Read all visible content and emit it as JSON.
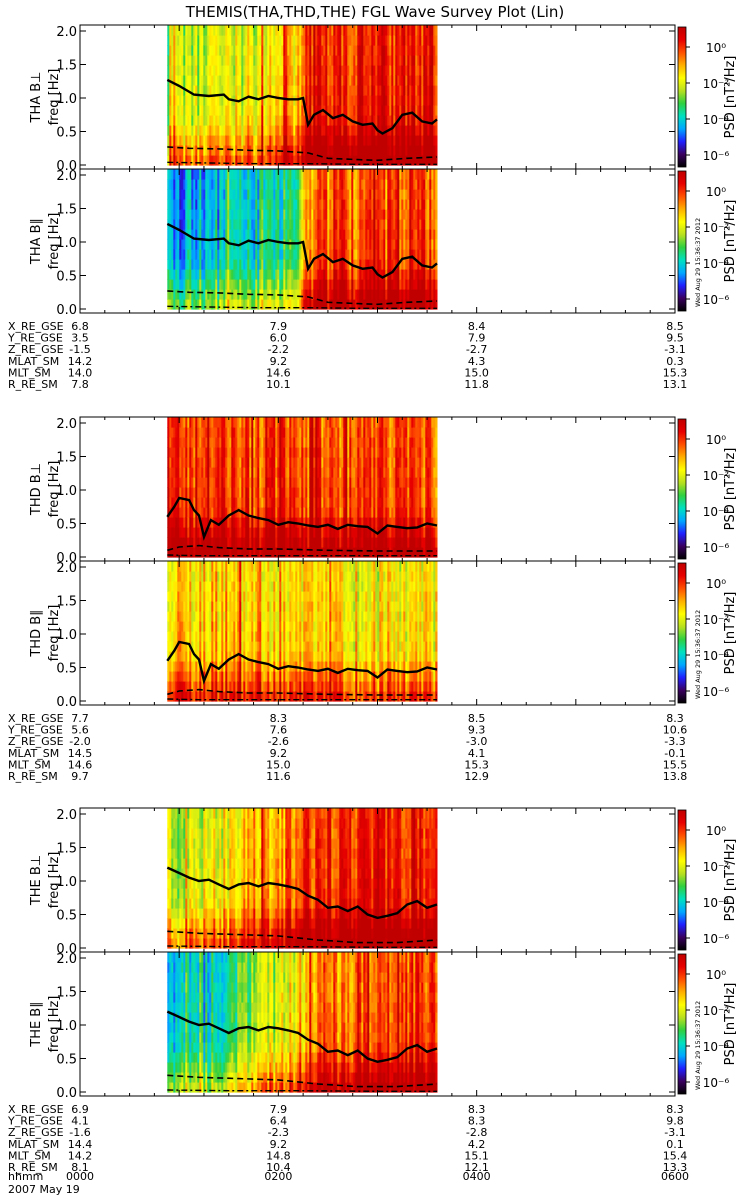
{
  "title": "THEMIS(THA,THD,THE) FGL Wave Survey Plot (Lin)",
  "timestamp": "Wed Aug 29 15:36:37 2012",
  "date_label": "2007 May 19",
  "time_label_name": "hhmm",
  "time_ticks": [
    "0000",
    "0200",
    "0400",
    "0600"
  ],
  "colorbar": {
    "label": "PSD [nT²/Hz]",
    "ticks": [
      "10⁰",
      "10⁻²",
      "10⁻⁴",
      "10⁻⁶"
    ],
    "colors": [
      "#000000",
      "#3a0060",
      "#2020ff",
      "#00a8ff",
      "#00e0c0",
      "#30d040",
      "#b8e020",
      "#ffff00",
      "#ffb000",
      "#ff5000",
      "#e80000",
      "#c00000"
    ]
  },
  "ephemeris_labels": [
    "X_RE_GSE",
    "Y_RE_GSE",
    "Z_RE_GSE",
    "MLAT_SM",
    "MLT_SM",
    "R_RE_SM"
  ],
  "chart_data": [
    {
      "type": "heatmap",
      "probe": "THA",
      "panels": [
        {
          "label": "THA B⊥",
          "ylabel": "freq [Hz]"
        },
        {
          "label": "THA B∥",
          "ylabel": "freq [Hz]"
        }
      ],
      "ylim": [
        0,
        2.0
      ],
      "yticks": [
        "0.0",
        "0.5",
        "1.0",
        "1.5",
        "2.0"
      ],
      "data_start_hr": 0.88,
      "data_end_hr": 3.6,
      "intensity_perp": [
        [
          0.9,
          0.55
        ],
        [
          1.3,
          0.6
        ],
        [
          1.75,
          0.65
        ],
        [
          2.2,
          0.7
        ],
        [
          2.3,
          0.92
        ],
        [
          2.6,
          0.9
        ],
        [
          3.0,
          0.92
        ],
        [
          3.6,
          0.92
        ]
      ],
      "intensity_par": [
        [
          0.9,
          0.3
        ],
        [
          1.3,
          0.33
        ],
        [
          1.75,
          0.4
        ],
        [
          2.2,
          0.45
        ],
        [
          2.3,
          0.82
        ],
        [
          2.6,
          0.82
        ],
        [
          3.0,
          0.85
        ],
        [
          3.6,
          0.85
        ]
      ],
      "solid": [
        [
          0.88,
          1.27
        ],
        [
          1.0,
          1.18
        ],
        [
          1.15,
          1.05
        ],
        [
          1.3,
          1.03
        ],
        [
          1.45,
          1.05
        ],
        [
          1.5,
          0.98
        ],
        [
          1.6,
          0.95
        ],
        [
          1.7,
          1.02
        ],
        [
          1.8,
          0.98
        ],
        [
          1.9,
          1.03
        ],
        [
          2.0,
          1.0
        ],
        [
          2.1,
          0.98
        ],
        [
          2.2,
          0.98
        ],
        [
          2.25,
          1.0
        ],
        [
          2.3,
          0.6
        ],
        [
          2.36,
          0.75
        ],
        [
          2.45,
          0.82
        ],
        [
          2.55,
          0.7
        ],
        [
          2.65,
          0.75
        ],
        [
          2.75,
          0.65
        ],
        [
          2.85,
          0.6
        ],
        [
          2.95,
          0.62
        ],
        [
          3.0,
          0.52
        ],
        [
          3.05,
          0.47
        ],
        [
          3.15,
          0.55
        ],
        [
          3.25,
          0.75
        ],
        [
          3.35,
          0.78
        ],
        [
          3.45,
          0.65
        ],
        [
          3.55,
          0.62
        ],
        [
          3.6,
          0.68
        ]
      ],
      "dashed": [
        [
          0.88,
          0.27
        ],
        [
          1.1,
          0.25
        ],
        [
          1.4,
          0.24
        ],
        [
          1.7,
          0.22
        ],
        [
          2.0,
          0.21
        ],
        [
          2.3,
          0.18
        ],
        [
          2.5,
          0.1
        ],
        [
          2.8,
          0.08
        ],
        [
          3.0,
          0.07
        ],
        [
          3.3,
          0.1
        ],
        [
          3.6,
          0.12
        ]
      ],
      "dashdot": [
        [
          0.88,
          0.04
        ],
        [
          1.3,
          0.03
        ],
        [
          1.8,
          0.02
        ],
        [
          2.3,
          0.02
        ],
        [
          2.8,
          0.01
        ],
        [
          3.6,
          0.01
        ]
      ],
      "ephemeris": [
        [
          "6.8",
          "7.9",
          "8.4",
          "8.5"
        ],
        [
          "3.5",
          "6.0",
          "7.9",
          "9.5"
        ],
        [
          "-1.5",
          "-2.2",
          "-2.7",
          "-3.1"
        ],
        [
          "14.2",
          "9.2",
          "4.3",
          "0.3"
        ],
        [
          "14.0",
          "14.6",
          "15.0",
          "15.3"
        ],
        [
          "7.8",
          "10.1",
          "11.8",
          "13.1"
        ]
      ]
    },
    {
      "type": "heatmap",
      "probe": "THD",
      "panels": [
        {
          "label": "THD B⊥",
          "ylabel": "freq [Hz]"
        },
        {
          "label": "THD B∥",
          "ylabel": "freq [Hz]"
        }
      ],
      "ylim": [
        0,
        2.0
      ],
      "yticks": [
        "0.0",
        "0.5",
        "1.0",
        "1.5",
        "2.0"
      ],
      "data_start_hr": 0.88,
      "data_end_hr": 3.6,
      "intensity_perp": [
        [
          0.9,
          0.88
        ],
        [
          1.5,
          0.88
        ],
        [
          2.2,
          0.86
        ],
        [
          3.0,
          0.85
        ],
        [
          3.6,
          0.84
        ]
      ],
      "intensity_par": [
        [
          0.9,
          0.72
        ],
        [
          1.5,
          0.72
        ],
        [
          2.2,
          0.7
        ],
        [
          3.0,
          0.66
        ],
        [
          3.6,
          0.66
        ]
      ],
      "solid": [
        [
          0.88,
          0.6
        ],
        [
          0.95,
          0.75
        ],
        [
          1.0,
          0.88
        ],
        [
          1.1,
          0.85
        ],
        [
          1.15,
          0.7
        ],
        [
          1.2,
          0.62
        ],
        [
          1.25,
          0.3
        ],
        [
          1.32,
          0.55
        ],
        [
          1.4,
          0.48
        ],
        [
          1.5,
          0.62
        ],
        [
          1.6,
          0.7
        ],
        [
          1.7,
          0.62
        ],
        [
          1.8,
          0.58
        ],
        [
          1.9,
          0.55
        ],
        [
          2.0,
          0.48
        ],
        [
          2.1,
          0.52
        ],
        [
          2.2,
          0.5
        ],
        [
          2.3,
          0.47
        ],
        [
          2.4,
          0.45
        ],
        [
          2.5,
          0.48
        ],
        [
          2.6,
          0.42
        ],
        [
          2.7,
          0.48
        ],
        [
          2.8,
          0.46
        ],
        [
          2.9,
          0.45
        ],
        [
          3.0,
          0.35
        ],
        [
          3.1,
          0.47
        ],
        [
          3.2,
          0.45
        ],
        [
          3.3,
          0.43
        ],
        [
          3.4,
          0.44
        ],
        [
          3.5,
          0.5
        ],
        [
          3.6,
          0.47
        ]
      ],
      "dashed": [
        [
          0.88,
          0.1
        ],
        [
          1.0,
          0.15
        ],
        [
          1.2,
          0.17
        ],
        [
          1.4,
          0.14
        ],
        [
          1.7,
          0.12
        ],
        [
          2.0,
          0.12
        ],
        [
          2.5,
          0.1
        ],
        [
          3.0,
          0.09
        ],
        [
          3.6,
          0.09
        ]
      ],
      "dashdot": [
        [
          0.88,
          0.03
        ],
        [
          1.2,
          0.02
        ],
        [
          2.0,
          0.02
        ],
        [
          3.0,
          0.02
        ],
        [
          3.6,
          0.02
        ]
      ],
      "ephemeris": [
        [
          "7.7",
          "8.3",
          "8.5",
          "8.3"
        ],
        [
          "5.6",
          "7.6",
          "9.3",
          "10.6"
        ],
        [
          "-2.0",
          "-2.6",
          "-3.0",
          "-3.3"
        ],
        [
          "14.5",
          "9.2",
          "4.1",
          "-0.1"
        ],
        [
          "14.6",
          "15.0",
          "15.3",
          "15.5"
        ],
        [
          "9.7",
          "11.6",
          "12.9",
          "13.8"
        ]
      ]
    },
    {
      "type": "heatmap",
      "probe": "THE",
      "panels": [
        {
          "label": "THE B⊥",
          "ylabel": "freq [Hz]"
        },
        {
          "label": "THE B∥",
          "ylabel": "freq [Hz]"
        }
      ],
      "ylim": [
        0,
        2.0
      ],
      "yticks": [
        "0.0",
        "0.5",
        "1.0",
        "1.5",
        "2.0"
      ],
      "data_start_hr": 0.88,
      "data_end_hr": 3.6,
      "intensity_perp": [
        [
          0.9,
          0.58
        ],
        [
          1.3,
          0.63
        ],
        [
          1.75,
          0.75
        ],
        [
          2.2,
          0.82
        ],
        [
          2.4,
          0.9
        ],
        [
          3.0,
          0.92
        ],
        [
          3.6,
          0.92
        ]
      ],
      "intensity_par": [
        [
          0.9,
          0.38
        ],
        [
          1.3,
          0.38
        ],
        [
          1.75,
          0.55
        ],
        [
          2.2,
          0.7
        ],
        [
          2.4,
          0.8
        ],
        [
          3.0,
          0.85
        ],
        [
          3.6,
          0.85
        ]
      ],
      "solid": [
        [
          0.88,
          1.2
        ],
        [
          1.0,
          1.12
        ],
        [
          1.1,
          1.05
        ],
        [
          1.2,
          1.0
        ],
        [
          1.3,
          1.02
        ],
        [
          1.4,
          0.95
        ],
        [
          1.5,
          0.88
        ],
        [
          1.6,
          0.95
        ],
        [
          1.7,
          0.97
        ],
        [
          1.8,
          0.92
        ],
        [
          1.9,
          0.97
        ],
        [
          2.0,
          0.95
        ],
        [
          2.1,
          0.92
        ],
        [
          2.2,
          0.88
        ],
        [
          2.3,
          0.78
        ],
        [
          2.4,
          0.72
        ],
        [
          2.5,
          0.6
        ],
        [
          2.6,
          0.62
        ],
        [
          2.7,
          0.55
        ],
        [
          2.8,
          0.62
        ],
        [
          2.9,
          0.5
        ],
        [
          3.0,
          0.45
        ],
        [
          3.1,
          0.48
        ],
        [
          3.2,
          0.52
        ],
        [
          3.3,
          0.65
        ],
        [
          3.4,
          0.7
        ],
        [
          3.5,
          0.6
        ],
        [
          3.6,
          0.65
        ]
      ],
      "dashed": [
        [
          0.88,
          0.25
        ],
        [
          1.2,
          0.22
        ],
        [
          1.6,
          0.2
        ],
        [
          2.0,
          0.18
        ],
        [
          2.4,
          0.12
        ],
        [
          2.8,
          0.08
        ],
        [
          3.2,
          0.08
        ],
        [
          3.6,
          0.12
        ]
      ],
      "dashdot": [
        [
          0.88,
          0.03
        ],
        [
          1.5,
          0.02
        ],
        [
          2.2,
          0.02
        ],
        [
          3.0,
          0.01
        ],
        [
          3.6,
          0.01
        ]
      ],
      "ephemeris": [
        [
          "6.9",
          "7.9",
          "8.3",
          "8.3"
        ],
        [
          "4.1",
          "6.4",
          "8.3",
          "9.8"
        ],
        [
          "-1.6",
          "-2.3",
          "-2.8",
          "-3.1"
        ],
        [
          "14.4",
          "9.2",
          "4.2",
          "0.1"
        ],
        [
          "14.2",
          "14.8",
          "15.1",
          "15.4"
        ],
        [
          "8.1",
          "10.4",
          "12.1",
          "13.3"
        ]
      ]
    }
  ]
}
